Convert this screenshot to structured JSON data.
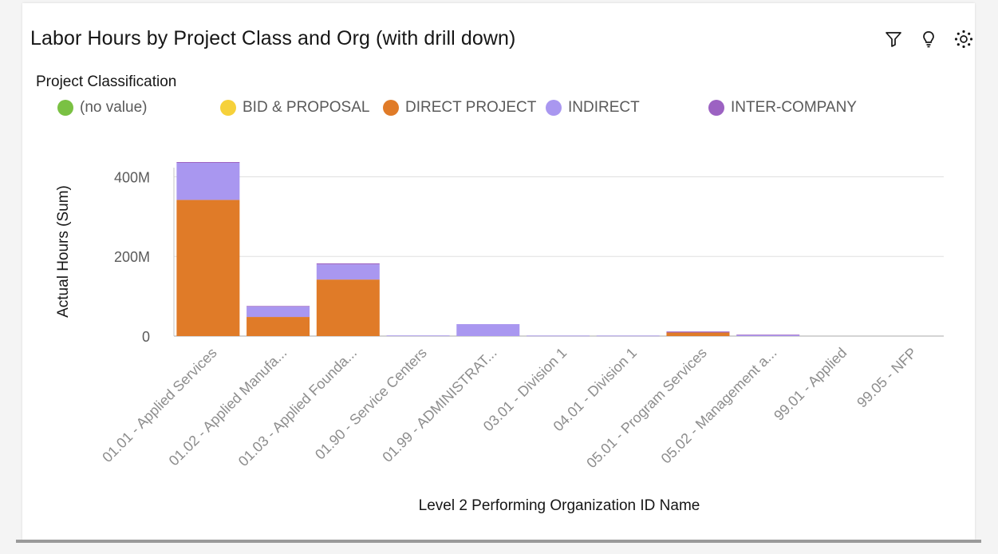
{
  "title": "Labor Hours by Project Class and Org (with drill down)",
  "toolbar": {
    "filter_icon": "filter-icon",
    "insights_icon": "lightbulb-icon",
    "settings_icon": "settings-icon"
  },
  "legend": {
    "title": "Project Classification",
    "items": [
      {
        "label": "(no value)",
        "color": "#7ac143"
      },
      {
        "label": "BID & PROPOSAL",
        "color": "#f6d13a"
      },
      {
        "label": "DIRECT PROJECT",
        "color": "#e07b28"
      },
      {
        "label": "INDIRECT",
        "color": "#a997f0"
      },
      {
        "label": "INTER-COMPANY",
        "color": "#9c62c2"
      }
    ]
  },
  "chart_data": {
    "type": "bar",
    "stacked": true,
    "xlabel": "Level 2 Performing Organization ID Name",
    "ylabel": "Actual Hours (Sum)",
    "ylim": [
      0,
      420000000
    ],
    "yticks": [
      0,
      200000000,
      400000000
    ],
    "ytick_labels": [
      "0",
      "200M",
      "400M"
    ],
    "categories": [
      "01.01 - Applied Services",
      "01.02 - Applied Manufa...",
      "01.03 - Applied Founda...",
      "01.90 - Service Centers",
      "01.99 - ADMINISTRAT...",
      "03.01 - Division 1",
      "04.01 - Division 1",
      "05.01 - Program Services",
      "05.02 - Management a...",
      "99.01 - Applied",
      "99.05 - NFP"
    ],
    "series": [
      {
        "name": "(no value)",
        "color": "#7ac143",
        "values": [
          0,
          0,
          0,
          0,
          0,
          0,
          0,
          0,
          0,
          0,
          0
        ]
      },
      {
        "name": "BID & PROPOSAL",
        "color": "#f6d13a",
        "values": [
          0,
          0,
          0,
          0,
          0,
          0,
          0,
          0,
          0,
          0,
          0
        ]
      },
      {
        "name": "DIRECT PROJECT",
        "color": "#e07b28",
        "values": [
          342000000,
          48000000,
          142000000,
          0,
          0,
          0,
          0,
          9000000,
          0,
          0,
          0
        ]
      },
      {
        "name": "INDIRECT",
        "color": "#a997f0",
        "values": [
          93000000,
          26000000,
          38000000,
          1500000,
          30000000,
          1200000,
          1200000,
          0,
          2500000,
          0,
          0
        ]
      },
      {
        "name": "INTER-COMPANY",
        "color": "#9c62c2",
        "values": [
          2000000,
          1500000,
          2500000,
          0,
          0,
          0,
          0,
          2500000,
          1000000,
          0,
          0
        ]
      }
    ]
  }
}
